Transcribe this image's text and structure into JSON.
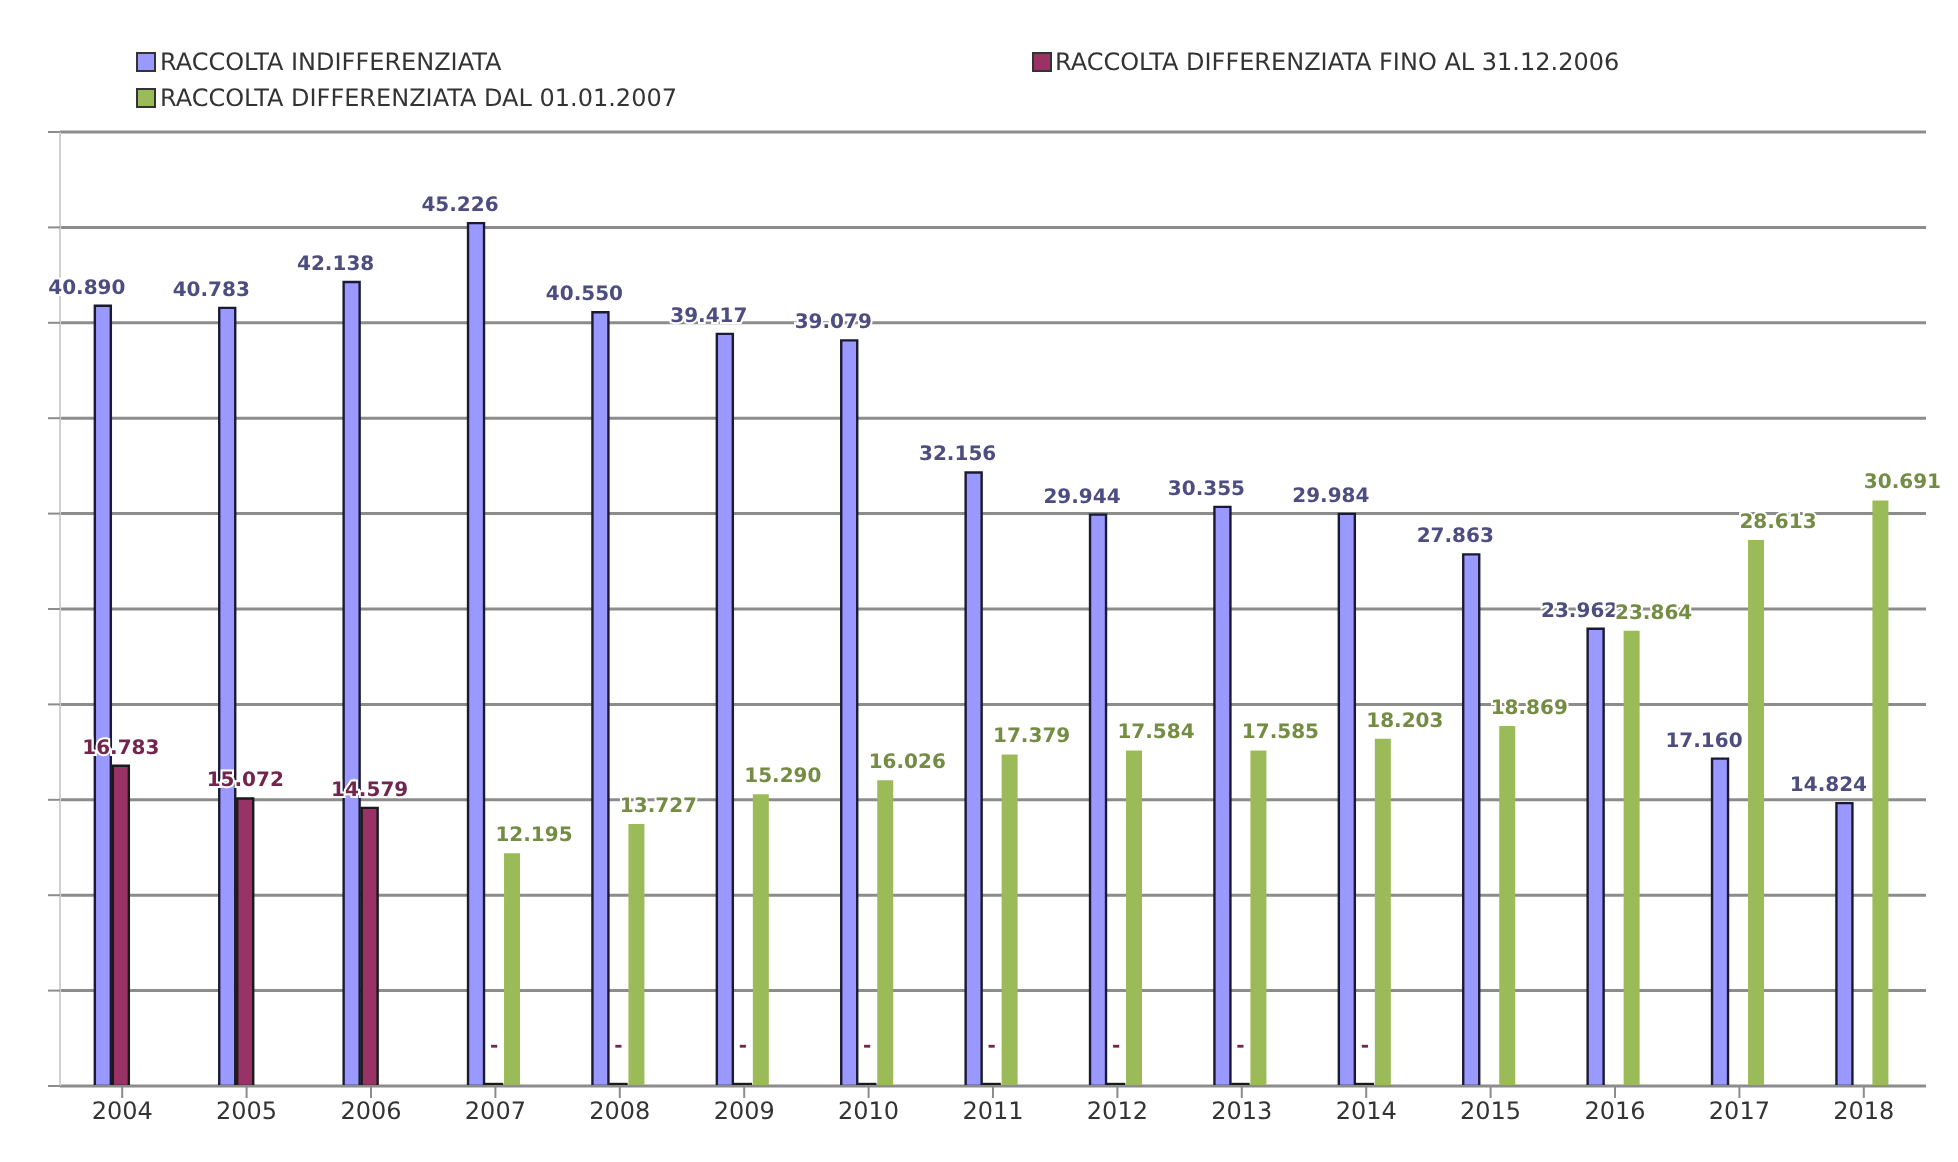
{
  "chart_data": {
    "type": "bar",
    "categories": [
      "2004",
      "2005",
      "2006",
      "2007",
      "2008",
      "2009",
      "2010",
      "2011",
      "2012",
      "2013",
      "2014",
      "2015",
      "2016",
      "2017",
      "2018"
    ],
    "series": [
      {
        "name": "RACCOLTA INDIFFERENZIATA",
        "color": "#9999ff",
        "values": [
          40890,
          40783,
          42138,
          45226,
          40550,
          39417,
          39079,
          32156,
          29944,
          30355,
          29984,
          27863,
          23962,
          17160,
          14824
        ],
        "value_labels": [
          "40.890",
          "40.783",
          "42.138",
          "45.226",
          "40.550",
          "39.417",
          "39.079",
          "32.156",
          "29.944",
          "30.355",
          "29.984",
          "27.863",
          "23.962",
          "17.160",
          "14.824"
        ]
      },
      {
        "name": "RACCOLTA DIFFERENZIATA FINO AL 31.12.2006",
        "color": "#993366",
        "values": [
          16783,
          15072,
          14579,
          0,
          0,
          0,
          0,
          0,
          0,
          0,
          0,
          null,
          null,
          null,
          null
        ],
        "value_labels": [
          "16.783",
          "15.072",
          "14.579",
          "-",
          "-",
          "-",
          "-",
          "-",
          "-",
          "-",
          "-",
          null,
          null,
          null,
          null
        ]
      },
      {
        "name": "RACCOLTA DIFFERENZIATA DAL 01.01.2007",
        "color": "#9bbb59",
        "values": [
          null,
          null,
          null,
          12195,
          13727,
          15290,
          16026,
          17379,
          17584,
          17585,
          18203,
          18869,
          23864,
          28613,
          30691
        ],
        "value_labels": [
          null,
          null,
          null,
          "12.195",
          "13.727",
          "15.290",
          "16.026",
          "17.379",
          "17.584",
          "17.585",
          "18.203",
          "18.869",
          "23.864",
          "28.613",
          "30.691"
        ]
      }
    ],
    "ylim": [
      0,
      50000
    ],
    "yticks": [
      {
        "value": 0,
        "label": null
      },
      {
        "value": 5000,
        "label": null
      },
      {
        "value": 10000,
        "label": null
      },
      {
        "value": 15000,
        "label": null
      },
      {
        "value": 20000,
        "label": null
      },
      {
        "value": 25000,
        "label": null
      },
      {
        "value": 30000,
        "label": null
      },
      {
        "value": 35000,
        "label": null
      },
      {
        "value": 40000,
        "label": null
      },
      {
        "value": 45000,
        "label": null
      },
      {
        "value": 50000,
        "label": null
      }
    ],
    "tick_labels": "x",
    "grid": "y",
    "legend": "top"
  }
}
